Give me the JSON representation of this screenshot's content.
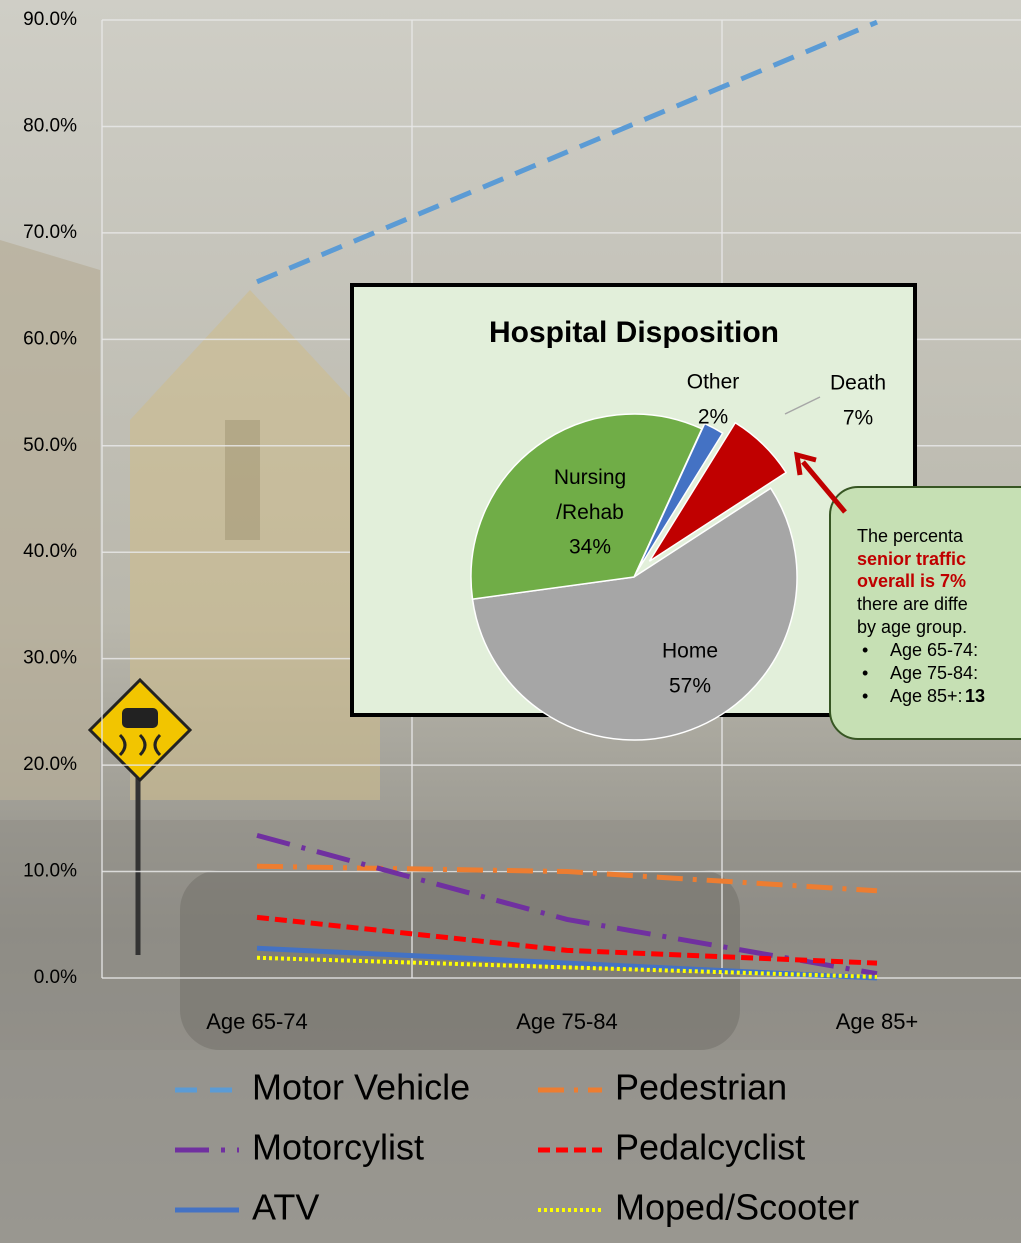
{
  "chart_data": [
    {
      "type": "line",
      "categories": [
        "Age 65-74",
        "Age 75-84",
        "Age 85+"
      ],
      "series": [
        {
          "name": "Motor Vehicle",
          "color": "#5b9bd5",
          "line_style": "dashed",
          "values": [
            65.4,
            77.6,
            89.8
          ]
        },
        {
          "name": "Pedestrian",
          "color": "#ed7d31",
          "line_style": "dash-dot",
          "values": [
            10.5,
            10.0,
            8.2
          ]
        },
        {
          "name": "Motorcylist",
          "color": "#7030a0",
          "line_style": "long-dash-dot",
          "values": [
            13.4,
            5.5,
            0.4
          ]
        },
        {
          "name": "Pedalcyclist",
          "color": "#ff0000",
          "line_style": "short-dash",
          "values": [
            5.7,
            2.6,
            1.4
          ]
        },
        {
          "name": "ATV",
          "color": "#4472c4",
          "line_style": "solid",
          "values": [
            2.8,
            1.4,
            0.0
          ]
        },
        {
          "name": "Moped/Scooter",
          "color": "#ffff00",
          "line_style": "dotted",
          "values": [
            1.9,
            1.0,
            0.1
          ]
        }
      ],
      "ylim": [
        0,
        90
      ],
      "yticks": [
        {
          "value": 0,
          "label": "0.0%"
        },
        {
          "value": 10,
          "label": "10.0%"
        },
        {
          "value": 20,
          "label": "20.0%"
        },
        {
          "value": 30,
          "label": "30.0%"
        },
        {
          "value": 40,
          "label": "40.0%"
        },
        {
          "value": 50,
          "label": "50.0%"
        },
        {
          "value": 60,
          "label": "60.0%"
        },
        {
          "value": 70,
          "label": "70.0%"
        },
        {
          "value": 80,
          "label": "80.0%"
        },
        {
          "value": 90,
          "label": "90.0%"
        }
      ],
      "grid": true,
      "legend": "bottom"
    },
    {
      "type": "pie",
      "title": "Hospital Disposition",
      "categories": [
        "Home",
        "Nursing\n/Rehab",
        "Other",
        "Death"
      ],
      "values": [
        57,
        34,
        2,
        7
      ],
      "value_labels": [
        "57%",
        "34%",
        "2%",
        "7%"
      ],
      "colors": [
        "#a6a6a6",
        "#70ad47",
        "#4472c4",
        "#c00000"
      ]
    }
  ],
  "callout": {
    "lines": [
      "The percenta",
      "senior traffic",
      "overall is 7%",
      "there are diffe",
      "by age group."
    ],
    "bullets": [
      "Age 65-74:",
      "Age 75-84:",
      "Age 85+:"
    ],
    "bullet_value": "13"
  }
}
